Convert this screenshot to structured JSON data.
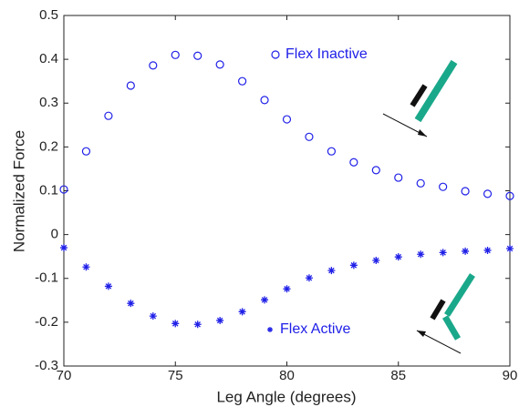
{
  "chart_data": {
    "type": "scatter",
    "xlabel": "Leg Angle (degrees)",
    "ylabel": "Normalized Force",
    "x": [
      70,
      71,
      72,
      73,
      74,
      75,
      76,
      77,
      78,
      79,
      80,
      81,
      82,
      83,
      84,
      85,
      86,
      87,
      88,
      89,
      90
    ],
    "series": [
      {
        "name": "Flex Inactive",
        "color": "#2020e8",
        "marker": "o",
        "values": [
          0.103,
          0.19,
          0.271,
          0.34,
          0.386,
          0.41,
          0.408,
          0.388,
          0.35,
          0.307,
          0.263,
          0.223,
          0.19,
          0.165,
          0.147,
          0.13,
          0.117,
          0.109,
          0.099,
          0.093,
          0.088
        ]
      },
      {
        "name": "Flex Active",
        "color": "#2020e8",
        "marker": "*",
        "values": [
          -0.03,
          -0.074,
          -0.118,
          -0.157,
          -0.186,
          -0.203,
          -0.205,
          -0.196,
          -0.176,
          -0.149,
          -0.124,
          -0.099,
          -0.082,
          -0.07,
          -0.059,
          -0.051,
          -0.045,
          -0.041,
          -0.038,
          -0.036,
          -0.032
        ]
      }
    ],
    "xlim": [
      70,
      90
    ],
    "xticks": [
      70,
      75,
      80,
      85,
      90
    ],
    "ylim": [
      -0.3,
      0.5
    ],
    "yticks": [
      -0.3,
      -0.2,
      -0.1,
      0,
      0.1,
      0.2,
      0.3,
      0.4,
      0.5
    ],
    "grid": false
  }
}
